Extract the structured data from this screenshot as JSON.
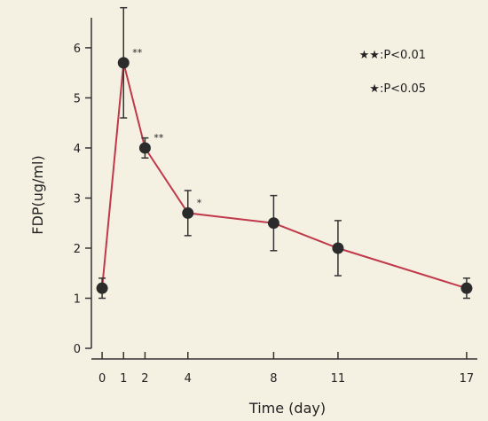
{
  "chart_data": {
    "type": "line",
    "xlabel": "Time (day)",
    "ylabel": "FDP(ug/ml)",
    "x_ticks": [
      0,
      1,
      2,
      4,
      8,
      11,
      17
    ],
    "y_ticks": [
      0,
      1,
      2,
      3,
      4,
      5,
      6
    ],
    "xlim": [
      -0.5,
      17.5
    ],
    "ylim": [
      0,
      6.6
    ],
    "grid": false,
    "colors": {
      "line": "#c0394a",
      "marker": "#2b2b2b",
      "error_bar": "#333333",
      "axis": "#333333"
    },
    "series": [
      {
        "points": [
          {
            "x": 0,
            "y": 1.2,
            "err": 0.2
          },
          {
            "x": 1,
            "y": 5.7,
            "err": 1.1,
            "sig": "**"
          },
          {
            "x": 2,
            "y": 4.0,
            "err": 0.2,
            "sig": "**"
          },
          {
            "x": 4,
            "y": 2.7,
            "err": 0.45,
            "sig": "*"
          },
          {
            "x": 8,
            "y": 2.5,
            "err": 0.55
          },
          {
            "x": 11,
            "y": 2.0,
            "err": 0.55
          },
          {
            "x": 17,
            "y": 1.2,
            "err": 0.2
          }
        ]
      }
    ],
    "legend": {
      "position": "top-right",
      "entries": [
        {
          "star": "★★",
          "text": ":P<0.01"
        },
        {
          "star": "★",
          "text": ":P<0.05"
        }
      ]
    }
  }
}
